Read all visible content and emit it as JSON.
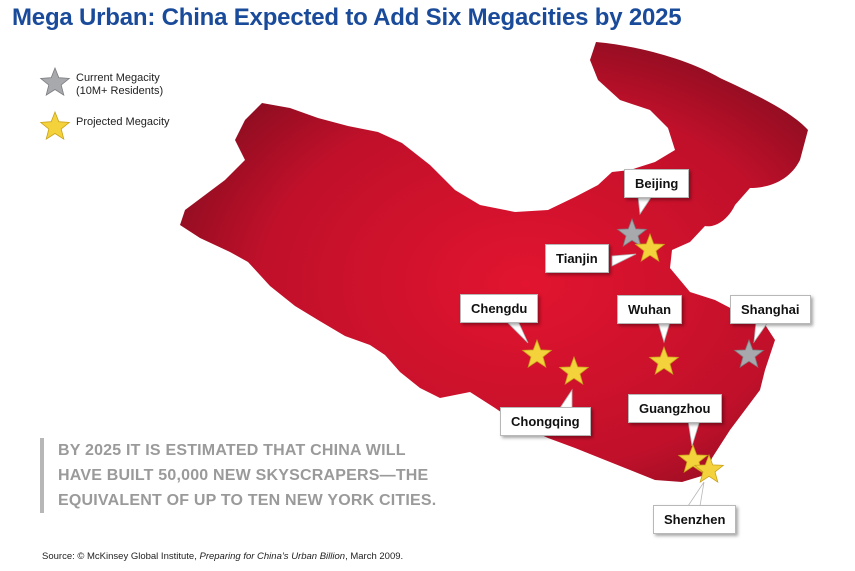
{
  "title": "Mega Urban: China Expected to Add Six Megacities by 2025",
  "legend": {
    "current": {
      "line1": "Current Megacity",
      "line2": "(10M+ Residents)",
      "color": "#a8a9ad"
    },
    "projected": {
      "label": "Projected Megacity",
      "color": "#f4d23c"
    }
  },
  "map": {
    "region": "China",
    "fill": "#d2122a"
  },
  "cities": [
    {
      "name": "Beijing",
      "type": "current"
    },
    {
      "name": "Tianjin",
      "type": "projected"
    },
    {
      "name": "Chengdu",
      "type": "projected"
    },
    {
      "name": "Chongqing",
      "type": "projected"
    },
    {
      "name": "Wuhan",
      "type": "projected"
    },
    {
      "name": "Shanghai",
      "type": "current"
    },
    {
      "name": "Guangzhou",
      "type": "projected"
    },
    {
      "name": "Shenzhen",
      "type": "projected"
    }
  ],
  "stat_lines": [
    "BY 2025 IT IS ESTIMATED THAT CHINA WILL",
    "HAVE BUILT 50,000 NEW SKYSCRAPERS—THE",
    "EQUIVALENT OF UP TO TEN NEW YORK CITIES."
  ],
  "source": {
    "prefix": "Source: © McKinsey Global Institute, ",
    "title": "Preparing for China’s Urban Billion",
    "suffix": ", March 2009."
  }
}
